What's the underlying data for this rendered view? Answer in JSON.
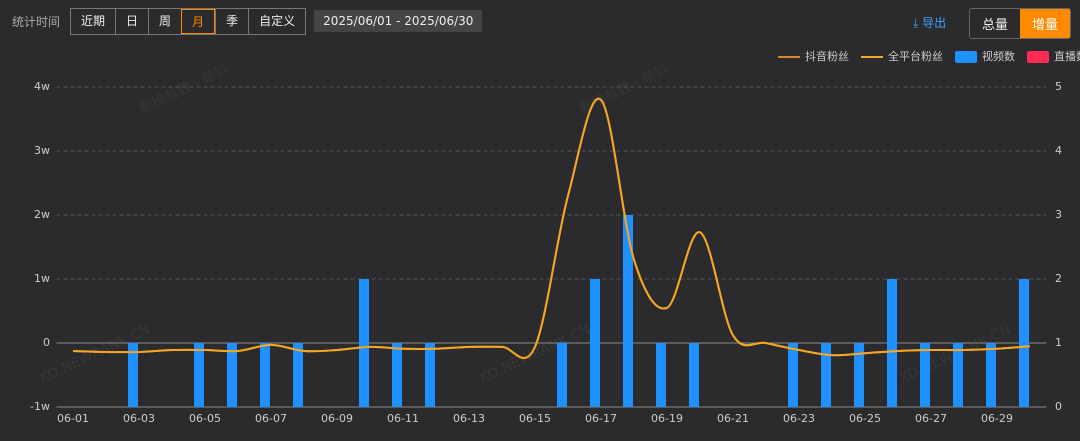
{
  "toolbar": {
    "label": "统计时间",
    "periods": [
      "近期",
      "日",
      "周",
      "月",
      "季",
      "自定义"
    ],
    "active_period": "月",
    "date_range": "2025/06/01  -  2025/06/30",
    "export": "导出",
    "modes": [
      "总量",
      "增量"
    ],
    "active_mode": "增量"
  },
  "chart_data": {
    "type": "combo",
    "watermarks": [
      "新榜有数 · 新抖",
      "XD.NEWRANK.CN"
    ],
    "categories": [
      "06-01",
      null,
      "06-03",
      null,
      "06-05",
      null,
      "06-07",
      null,
      "06-09",
      null,
      "06-11",
      null,
      "06-13",
      null,
      "06-15",
      null,
      "06-17",
      null,
      "06-19",
      null,
      "06-21",
      null,
      "06-23",
      null,
      "06-25",
      null,
      "06-27",
      null,
      "06-29",
      null
    ],
    "ylim": [
      -10000,
      40000
    ],
    "yticks": [
      {
        "value": -10000,
        "label": "-1w"
      },
      0,
      {
        "value": 10000,
        "label": "1w"
      },
      {
        "value": 20000,
        "label": "2w"
      },
      {
        "value": 30000,
        "label": "3w"
      },
      {
        "value": 40000,
        "label": "4w"
      }
    ],
    "y2lim": [
      0,
      5
    ],
    "y2ticks": [
      0,
      1,
      2,
      3,
      4,
      5
    ],
    "grid": true,
    "series": [
      {
        "name": "抖音粉丝",
        "kind": "line",
        "color": "#e0802a",
        "values": [
          -1250,
          -1400,
          -1400,
          -1100,
          -1100,
          -1250,
          -300,
          -1250,
          -1100,
          -600,
          -900,
          -900,
          -600,
          -600,
          -600,
          23000,
          38000,
          13000,
          5500,
          17300,
          1200,
          0,
          -1100,
          -1900,
          -1600,
          -1250,
          -1100,
          -1100,
          -900,
          -500
        ]
      },
      {
        "name": "全平台粉丝",
        "kind": "line",
        "color": "#f5a623",
        "values": [
          -1250,
          -1400,
          -1400,
          -1100,
          -1100,
          -1250,
          -300,
          -1250,
          -1100,
          -600,
          -900,
          -900,
          -600,
          -600,
          -600,
          23000,
          38000,
          13000,
          5500,
          17300,
          1200,
          0,
          -1100,
          -1900,
          -1600,
          -1250,
          -1100,
          -1100,
          -900,
          -500
        ]
      },
      {
        "name": "视频数",
        "kind": "bar",
        "axis": "y2",
        "color": "#1e90ff",
        "values": [
          0,
          0,
          1,
          0,
          1,
          1,
          1,
          1,
          0,
          2,
          1,
          1,
          0,
          0,
          0,
          1,
          2,
          3,
          1,
          1,
          0,
          0,
          1,
          1,
          1,
          2,
          1,
          1,
          1,
          2
        ]
      },
      {
        "name": "直播数",
        "kind": "bar",
        "axis": "y2",
        "color": "#ff2d55",
        "values": [
          0,
          0,
          0,
          0,
          0,
          0,
          0,
          0,
          0,
          0,
          0,
          0,
          0,
          0,
          0,
          0,
          0,
          0,
          0,
          0,
          0,
          0,
          0,
          0,
          0,
          0,
          0,
          0,
          0,
          0
        ]
      }
    ]
  }
}
